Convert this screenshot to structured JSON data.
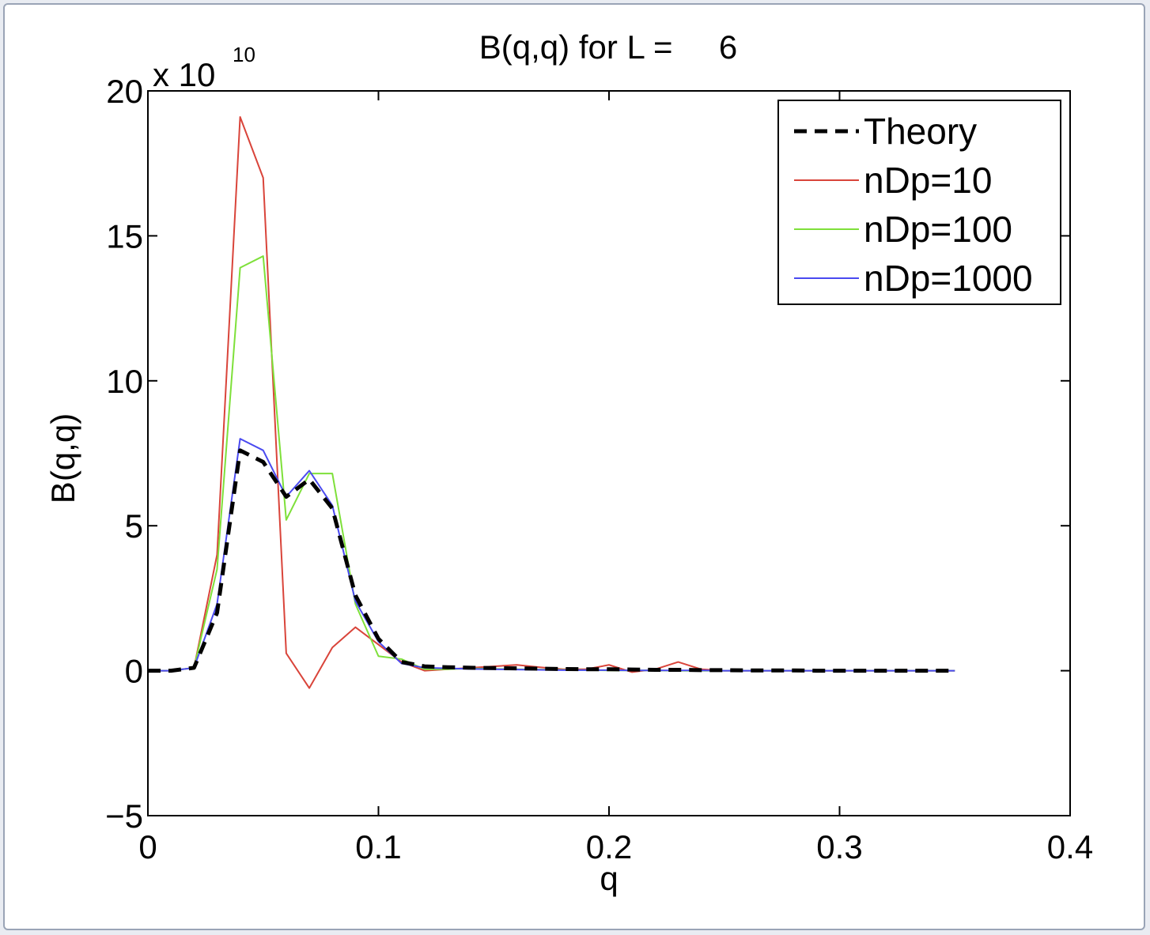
{
  "chart_data": {
    "type": "line",
    "title": "B(q,q) for L =     6",
    "xlabel": "q",
    "ylabel": "B(q,q)",
    "y_multiplier": {
      "base": "x 10",
      "exponent": "10"
    },
    "xlim": [
      0,
      0.4
    ],
    "ylim": [
      -5,
      20
    ],
    "xticks": [
      "0",
      "0.1",
      "0.2",
      "0.3",
      "0.4"
    ],
    "yticks": [
      "−5",
      "0",
      "5",
      "10",
      "15",
      "20"
    ],
    "xtick_values": [
      0,
      0.1,
      0.2,
      0.3,
      0.4
    ],
    "ytick_values": [
      -5,
      0,
      5,
      10,
      15,
      20
    ],
    "grid": false,
    "legend_position": "top-right",
    "x": [
      0,
      0.01,
      0.02,
      0.03,
      0.04,
      0.05,
      0.06,
      0.07,
      0.08,
      0.09,
      0.1,
      0.11,
      0.12,
      0.13,
      0.14,
      0.15,
      0.16,
      0.17,
      0.18,
      0.19,
      0.2,
      0.21,
      0.22,
      0.23,
      0.24,
      0.25,
      0.26,
      0.27,
      0.28,
      0.29,
      0.3,
      0.31,
      0.32,
      0.33,
      0.34,
      0.35
    ],
    "series": [
      {
        "name": "Theory",
        "color": "#000000",
        "style": "dashed",
        "values": [
          0,
          0,
          0.1,
          2.0,
          7.6,
          7.2,
          6.0,
          6.6,
          5.6,
          2.6,
          1.1,
          0.3,
          0.15,
          0.12,
          0.1,
          0.09,
          0.08,
          0.07,
          0.06,
          0.05,
          0.05,
          0.04,
          0.03,
          0.03,
          0.02,
          0.02,
          0.01,
          0.01,
          0.01,
          0,
          0,
          0,
          0,
          0,
          0,
          0
        ]
      },
      {
        "name": "nDp=10",
        "color": "#d9443a",
        "style": "solid",
        "values": [
          0,
          0,
          0.1,
          4.0,
          19.1,
          17.0,
          0.6,
          -0.6,
          0.8,
          1.5,
          0.9,
          0.3,
          0,
          0.05,
          0.1,
          0.15,
          0.2,
          0.12,
          0.05,
          0.05,
          0.2,
          -0.05,
          0.05,
          0.3,
          0.05,
          0,
          0,
          0,
          0,
          0,
          0,
          0,
          0,
          0,
          0,
          0
        ]
      },
      {
        "name": "nDp=100",
        "color": "#7ee03a",
        "style": "solid",
        "values": [
          0,
          0,
          0.1,
          3.5,
          13.9,
          14.3,
          5.2,
          6.8,
          6.8,
          2.3,
          0.5,
          0.4,
          0.05,
          0.05,
          0.08,
          0.06,
          0.05,
          0.04,
          0.03,
          0.02,
          0.01,
          0.01,
          0.01,
          0,
          0,
          0,
          0,
          0,
          0,
          0,
          0,
          0,
          0,
          0,
          0,
          0
        ]
      },
      {
        "name": "nDp=1000",
        "color": "#4a4af0",
        "style": "solid",
        "values": [
          0,
          0,
          0.1,
          2.3,
          8.0,
          7.6,
          6.0,
          6.9,
          5.7,
          2.4,
          1.0,
          0.25,
          0.1,
          0.08,
          0.06,
          0.05,
          0.04,
          0.03,
          0.02,
          0.02,
          0.02,
          0.01,
          0.01,
          0.01,
          0.01,
          0,
          0,
          0,
          0,
          0,
          0,
          0,
          0,
          0,
          0,
          0
        ]
      }
    ]
  }
}
